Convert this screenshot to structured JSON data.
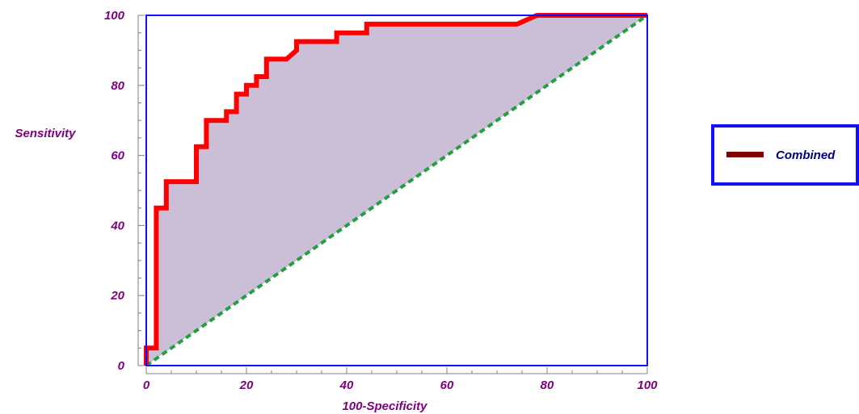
{
  "chart_data": {
    "type": "line",
    "title": "",
    "xlabel": "100-Specificity",
    "ylabel": "Sensitivity",
    "xlim": [
      0,
      100
    ],
    "ylim": [
      0,
      100
    ],
    "x_ticks": [
      "0",
      "20",
      "40",
      "60",
      "80",
      "100"
    ],
    "y_ticks": [
      "0",
      "20",
      "40",
      "60",
      "80",
      "100"
    ],
    "grid": false,
    "legend": {
      "position": "right",
      "entries": [
        "Combined"
      ]
    },
    "series": [
      {
        "name": "Combined",
        "kind": "roc-step",
        "points": [
          [
            0,
            0
          ],
          [
            0,
            5
          ],
          [
            2,
            5
          ],
          [
            2,
            45
          ],
          [
            4,
            45
          ],
          [
            4,
            52.5
          ],
          [
            10,
            52.5
          ],
          [
            10,
            62.5
          ],
          [
            12,
            62.5
          ],
          [
            12,
            70
          ],
          [
            16,
            70
          ],
          [
            16,
            72.5
          ],
          [
            18,
            72.5
          ],
          [
            18,
            77.5
          ],
          [
            20,
            77.5
          ],
          [
            20,
            80
          ],
          [
            22,
            80
          ],
          [
            22,
            82.5
          ],
          [
            24,
            82.5
          ],
          [
            24,
            87.5
          ],
          [
            28,
            87.5
          ],
          [
            30,
            90
          ],
          [
            30,
            92.5
          ],
          [
            38,
            92.5
          ],
          [
            38,
            95
          ],
          [
            44,
            95
          ],
          [
            44,
            97.5
          ],
          [
            74,
            97.5
          ],
          [
            78,
            100
          ],
          [
            100,
            100
          ]
        ]
      },
      {
        "name": "",
        "kind": "reference-diagonal",
        "points": [
          [
            0,
            0
          ],
          [
            100,
            100
          ]
        ]
      }
    ],
    "colors": {
      "roc_line": "#ff0000",
      "area_fill": "#cbbfd8",
      "diagonal": "#20a040",
      "plot_border": "#1010ff",
      "tick_labels": "#800080",
      "axis_titles": "#800080",
      "legend_border": "#1010ff",
      "legend_swatch": "#800000",
      "legend_text": "#000080"
    }
  }
}
